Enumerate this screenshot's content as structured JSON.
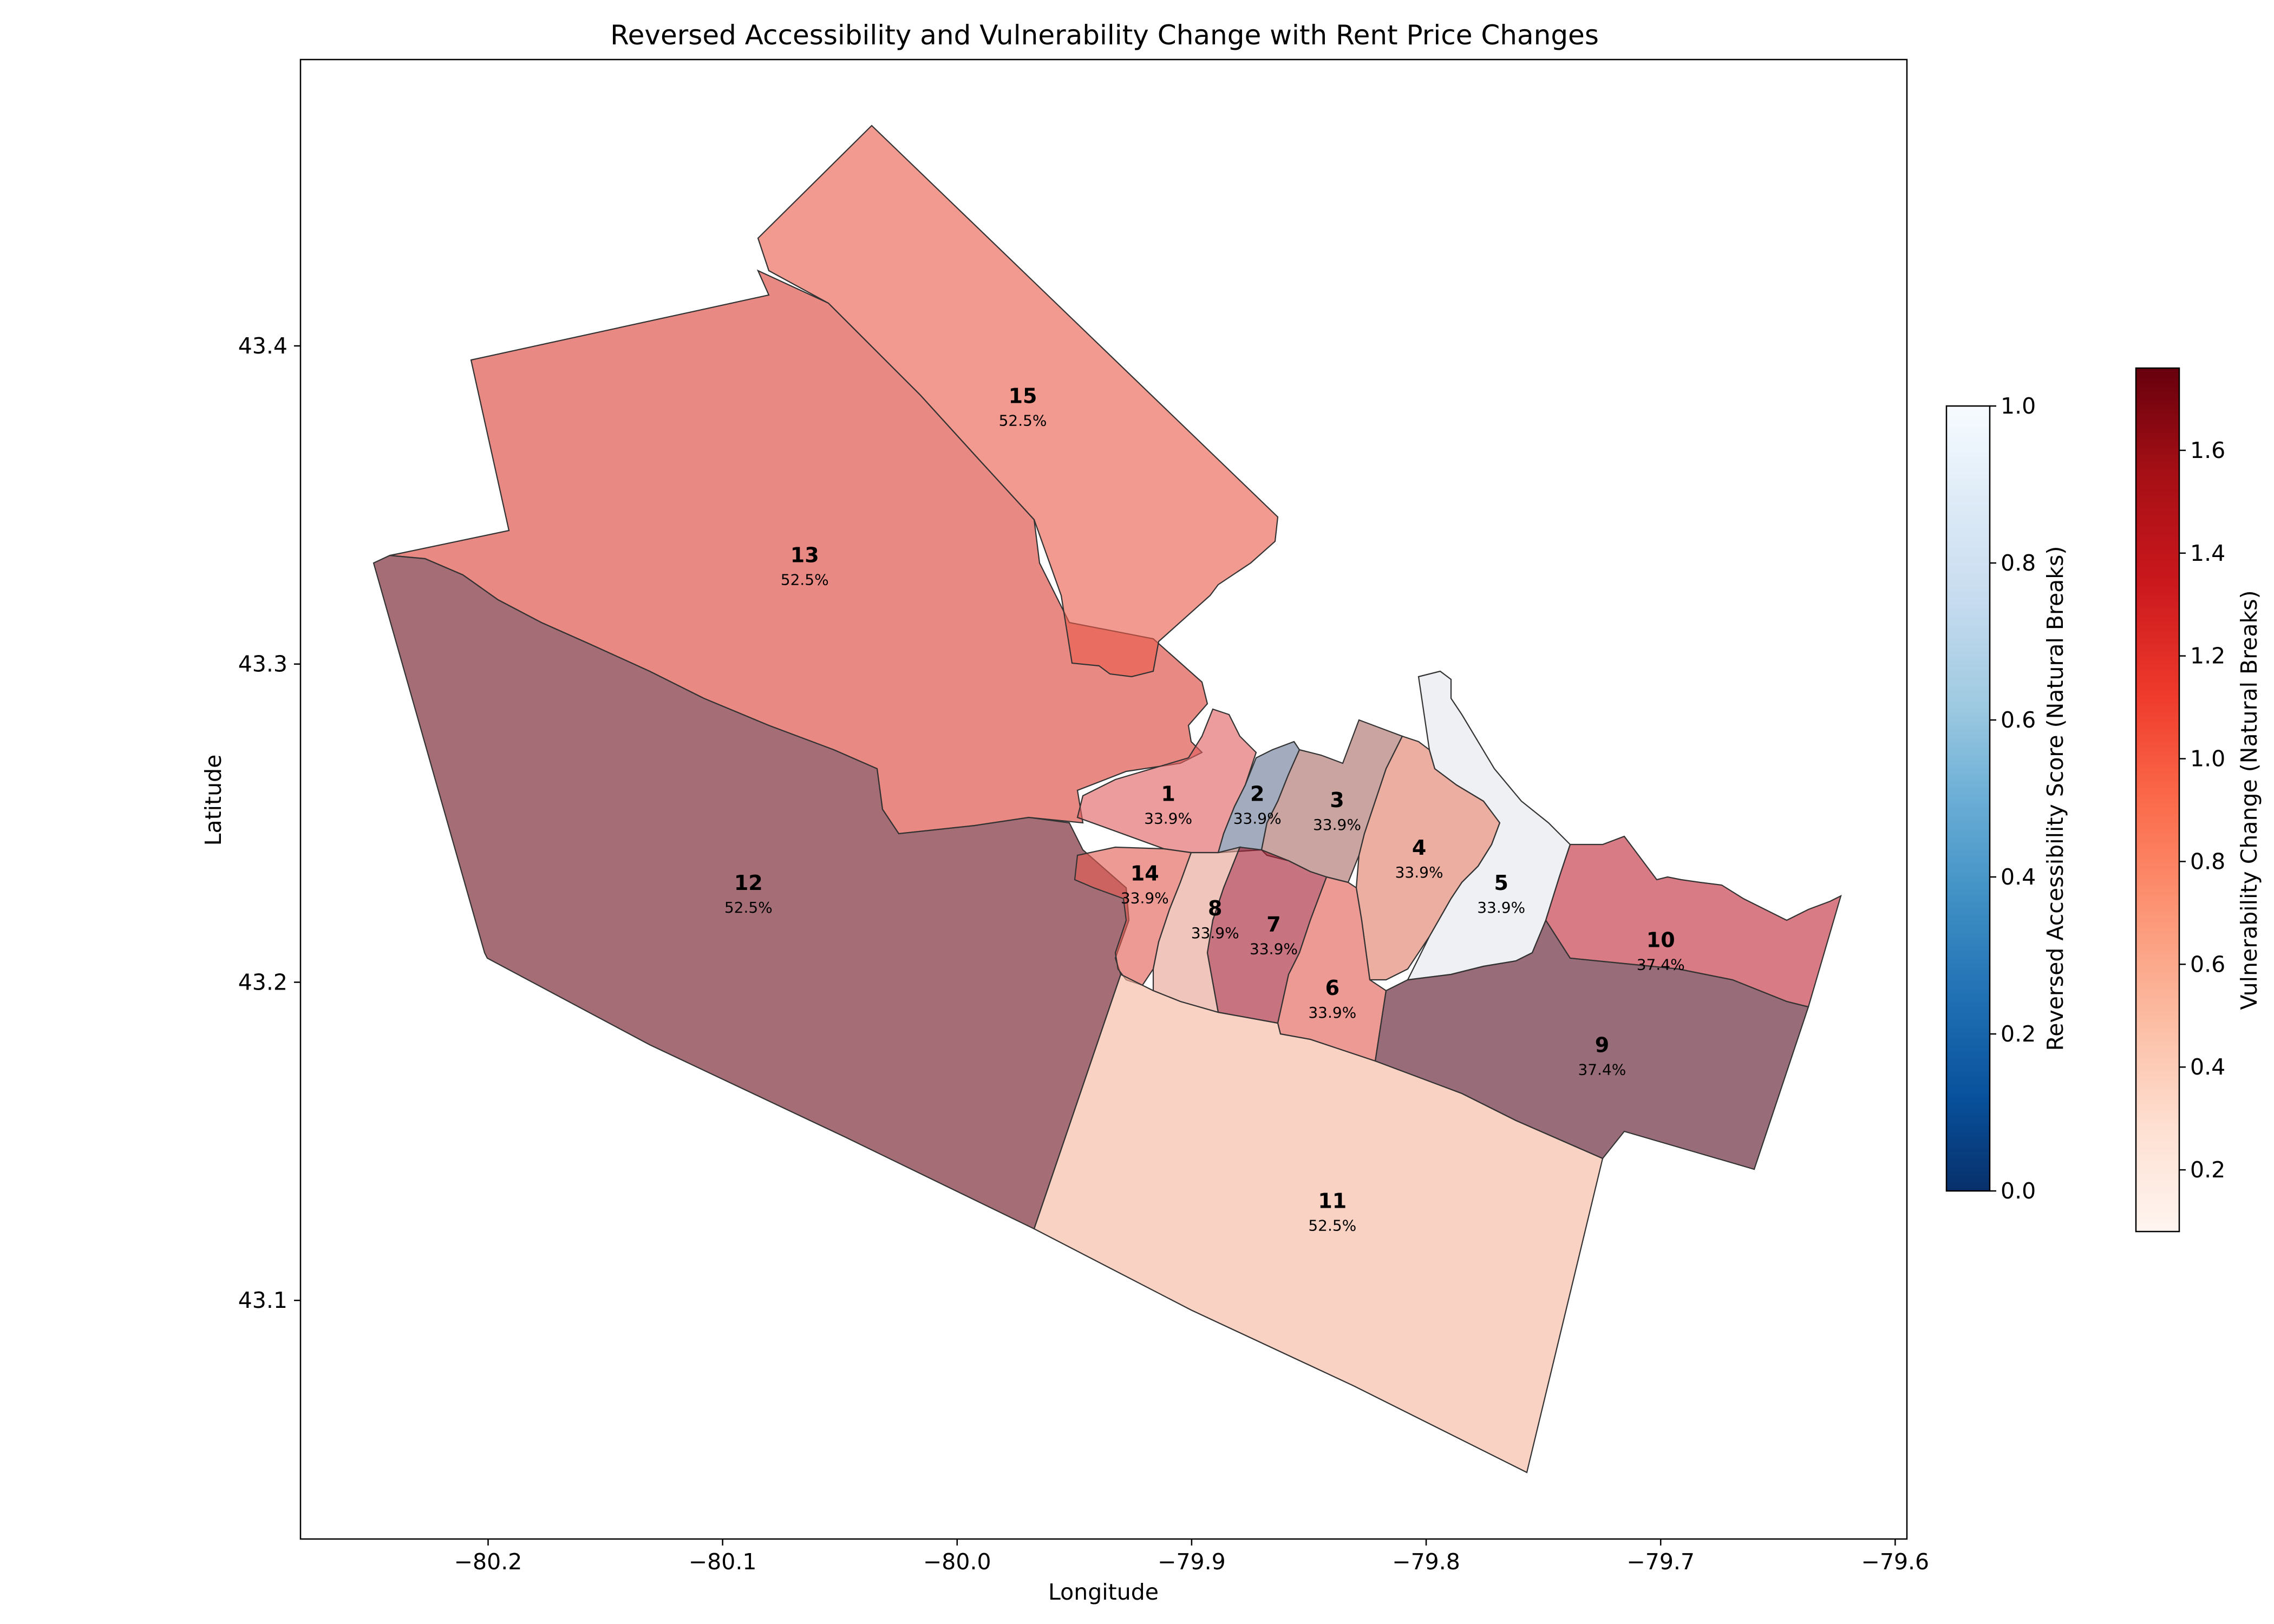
{
  "chart_data": {
    "type": "choropleth-map",
    "title": "Reversed Accessibility and Vulnerability Change with Rent Price Changes",
    "xlabel": "Longitude",
    "ylabel": "Latitude",
    "x_ticks": [
      "−80.2",
      "−80.1",
      "−80.0",
      "−79.9",
      "−79.8",
      "−79.7",
      "−79.6"
    ],
    "y_ticks": [
      "43.1",
      "43.2",
      "43.3",
      "43.4"
    ],
    "xlim": [
      -80.28,
      -79.595
    ],
    "ylim": [
      43.025,
      43.49
    ],
    "regions": [
      {
        "id": "1",
        "label": "33.9%",
        "center": [
          -79.91,
          43.256
        ]
      },
      {
        "id": "2",
        "label": "33.9%",
        "center": [
          -79.872,
          43.256
        ]
      },
      {
        "id": "3",
        "label": "33.9%",
        "center": [
          -79.838,
          43.254
        ]
      },
      {
        "id": "4",
        "label": "33.9%",
        "center": [
          -79.803,
          43.239
        ]
      },
      {
        "id": "5",
        "label": "33.9%",
        "center": [
          -79.768,
          43.228
        ]
      },
      {
        "id": "6",
        "label": "33.9%",
        "center": [
          -79.84,
          43.195
        ]
      },
      {
        "id": "7",
        "label": "33.9%",
        "center": [
          -79.865,
          43.215
        ]
      },
      {
        "id": "8",
        "label": "33.9%",
        "center": [
          -79.89,
          43.22
        ]
      },
      {
        "id": "9",
        "label": "37.4%",
        "center": [
          -79.725,
          43.177
        ]
      },
      {
        "id": "10",
        "label": "37.4%",
        "center": [
          -79.7,
          43.21
        ]
      },
      {
        "id": "11",
        "label": "52.5%",
        "center": [
          -79.84,
          43.128
        ]
      },
      {
        "id": "12",
        "label": "52.5%",
        "center": [
          -80.089,
          43.228
        ]
      },
      {
        "id": "13",
        "label": "52.5%",
        "center": [
          -80.065,
          43.331
        ]
      },
      {
        "id": "14",
        "label": "33.9%",
        "center": [
          -79.92,
          43.231
        ]
      },
      {
        "id": "15",
        "label": "52.5%",
        "center": [
          -79.972,
          43.381
        ]
      }
    ],
    "colorbars": [
      {
        "label": "Reversed Accessibility Score (Natural Breaks)",
        "ticks": [
          "0.0",
          "0.2",
          "0.4",
          "0.6",
          "0.8",
          "1.0"
        ],
        "range": [
          0,
          1
        ],
        "cmap": "Blues_r"
      },
      {
        "label": "Vulnerability Change (Natural Breaks)",
        "ticks": [
          "0.2",
          "0.4",
          "0.6",
          "0.8",
          "1.0",
          "1.2",
          "1.4",
          "1.6"
        ],
        "range": [
          0.08,
          1.76
        ],
        "cmap": "Reds"
      }
    ]
  },
  "colors": {
    "r1": "#e06060",
    "r2": "#6a7896",
    "r3": "#aa6c68",
    "r4": "#e07c68",
    "r5": "#e3e6ec",
    "r6": "#e45c52",
    "r7": "#a41e32",
    "r8": "#e6a292",
    "r9": "#5a1126",
    "r10": "#c02a38",
    "r11": "#f7b7a0",
    "r12": "#6e1524",
    "r13": "#db4038",
    "r14": "#e45c52",
    "r15": "#ea5c4c"
  }
}
